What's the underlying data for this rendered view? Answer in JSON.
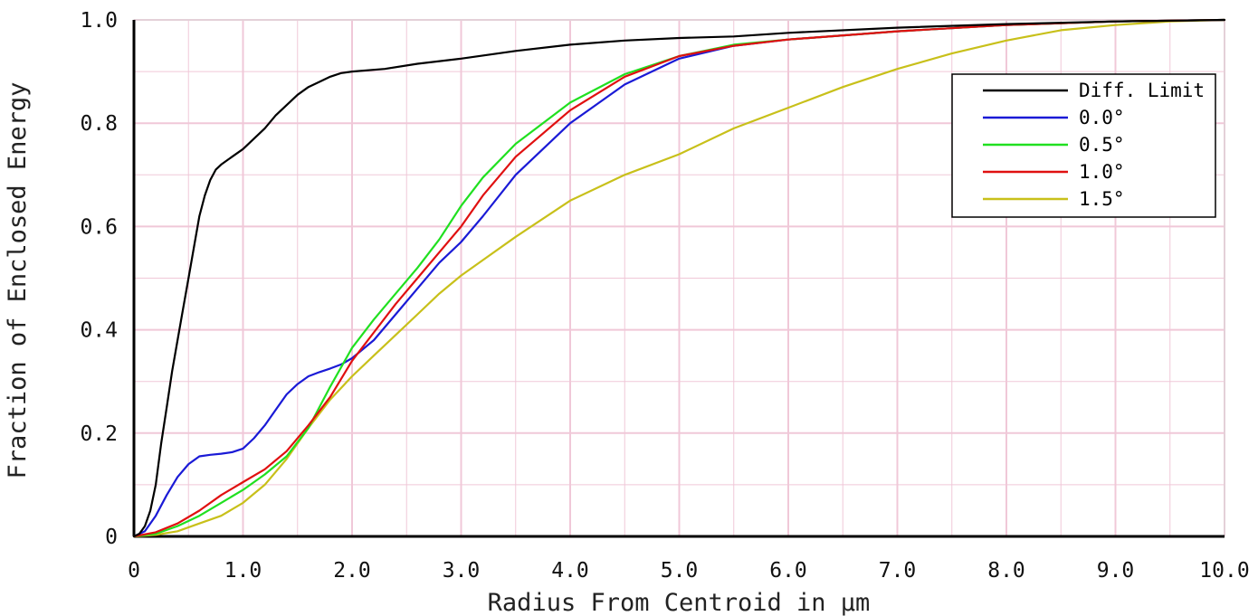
{
  "chart_data": {
    "type": "line",
    "title": "",
    "xlabel": "Radius From Centroid in µm",
    "ylabel": "Fraction of Enclosed Energy",
    "xlim": [
      0,
      10
    ],
    "ylim": [
      0,
      1
    ],
    "x_ticks": [
      {
        "value": 0,
        "label": "0"
      },
      {
        "value": 1,
        "label": "1.0"
      },
      {
        "value": 2,
        "label": "2.0"
      },
      {
        "value": 3,
        "label": "3.0"
      },
      {
        "value": 4,
        "label": "4.0"
      },
      {
        "value": 5,
        "label": "5.0"
      },
      {
        "value": 6,
        "label": "6.0"
      },
      {
        "value": 7,
        "label": "7.0"
      },
      {
        "value": 8,
        "label": "8.0"
      },
      {
        "value": 9,
        "label": "9.0"
      },
      {
        "value": 10,
        "label": "10.0"
      }
    ],
    "y_ticks": [
      {
        "value": 0,
        "label": "0"
      },
      {
        "value": 0.2,
        "label": "0.2"
      },
      {
        "value": 0.4,
        "label": "0.4"
      },
      {
        "value": 0.6,
        "label": "0.6"
      },
      {
        "value": 0.8,
        "label": "0.8"
      },
      {
        "value": 1.0,
        "label": "1.0"
      }
    ],
    "grid": true,
    "grid_color": "#f0c8d8",
    "legend_position": "top-right",
    "series": [
      {
        "name": "Diff. Limit",
        "color": "#000000",
        "points": [
          [
            0,
            0
          ],
          [
            0.05,
            0.005
          ],
          [
            0.1,
            0.02
          ],
          [
            0.15,
            0.05
          ],
          [
            0.2,
            0.1
          ],
          [
            0.25,
            0.18
          ],
          [
            0.3,
            0.25
          ],
          [
            0.35,
            0.32
          ],
          [
            0.4,
            0.38
          ],
          [
            0.45,
            0.44
          ],
          [
            0.5,
            0.5
          ],
          [
            0.55,
            0.56
          ],
          [
            0.6,
            0.62
          ],
          [
            0.65,
            0.66
          ],
          [
            0.7,
            0.69
          ],
          [
            0.75,
            0.71
          ],
          [
            0.8,
            0.72
          ],
          [
            0.9,
            0.735
          ],
          [
            1.0,
            0.75
          ],
          [
            1.1,
            0.77
          ],
          [
            1.2,
            0.79
          ],
          [
            1.3,
            0.815
          ],
          [
            1.4,
            0.835
          ],
          [
            1.5,
            0.855
          ],
          [
            1.6,
            0.87
          ],
          [
            1.7,
            0.88
          ],
          [
            1.8,
            0.89
          ],
          [
            1.9,
            0.897
          ],
          [
            2.0,
            0.9
          ],
          [
            2.3,
            0.905
          ],
          [
            2.6,
            0.915
          ],
          [
            3.0,
            0.925
          ],
          [
            3.5,
            0.94
          ],
          [
            4.0,
            0.952
          ],
          [
            4.5,
            0.96
          ],
          [
            5.0,
            0.965
          ],
          [
            5.5,
            0.968
          ],
          [
            6.0,
            0.975
          ],
          [
            7.0,
            0.985
          ],
          [
            8.0,
            0.992
          ],
          [
            9.0,
            0.997
          ],
          [
            10.0,
            1.0
          ]
        ]
      },
      {
        "name": "0.0°",
        "color": "#1a1ad6",
        "points": [
          [
            0,
            0
          ],
          [
            0.1,
            0.01
          ],
          [
            0.2,
            0.04
          ],
          [
            0.3,
            0.08
          ],
          [
            0.4,
            0.115
          ],
          [
            0.5,
            0.14
          ],
          [
            0.6,
            0.155
          ],
          [
            0.7,
            0.158
          ],
          [
            0.8,
            0.16
          ],
          [
            0.9,
            0.163
          ],
          [
            1.0,
            0.17
          ],
          [
            1.1,
            0.19
          ],
          [
            1.2,
            0.215
          ],
          [
            1.3,
            0.245
          ],
          [
            1.4,
            0.275
          ],
          [
            1.5,
            0.295
          ],
          [
            1.6,
            0.31
          ],
          [
            1.7,
            0.318
          ],
          [
            1.8,
            0.325
          ],
          [
            1.9,
            0.333
          ],
          [
            2.0,
            0.345
          ],
          [
            2.2,
            0.38
          ],
          [
            2.4,
            0.43
          ],
          [
            2.6,
            0.48
          ],
          [
            2.8,
            0.53
          ],
          [
            3.0,
            0.57
          ],
          [
            3.2,
            0.62
          ],
          [
            3.5,
            0.7
          ],
          [
            4.0,
            0.8
          ],
          [
            4.5,
            0.875
          ],
          [
            5.0,
            0.925
          ],
          [
            5.5,
            0.95
          ],
          [
            6.0,
            0.962
          ],
          [
            7.0,
            0.978
          ],
          [
            8.0,
            0.99
          ],
          [
            9.0,
            0.997
          ],
          [
            10.0,
            1.0
          ]
        ]
      },
      {
        "name": "0.5°",
        "color": "#20e020",
        "points": [
          [
            0,
            0
          ],
          [
            0.2,
            0.005
          ],
          [
            0.4,
            0.02
          ],
          [
            0.6,
            0.04
          ],
          [
            0.8,
            0.065
          ],
          [
            1.0,
            0.09
          ],
          [
            1.2,
            0.12
          ],
          [
            1.4,
            0.155
          ],
          [
            1.6,
            0.21
          ],
          [
            1.8,
            0.29
          ],
          [
            2.0,
            0.365
          ],
          [
            2.2,
            0.42
          ],
          [
            2.4,
            0.47
          ],
          [
            2.6,
            0.52
          ],
          [
            2.8,
            0.575
          ],
          [
            3.0,
            0.64
          ],
          [
            3.2,
            0.695
          ],
          [
            3.5,
            0.76
          ],
          [
            4.0,
            0.84
          ],
          [
            4.5,
            0.895
          ],
          [
            5.0,
            0.93
          ],
          [
            5.5,
            0.952
          ],
          [
            6.0,
            0.962
          ],
          [
            7.0,
            0.978
          ],
          [
            8.0,
            0.99
          ],
          [
            9.0,
            0.997
          ],
          [
            10.0,
            1.0
          ]
        ]
      },
      {
        "name": "1.0°",
        "color": "#e01010",
        "points": [
          [
            0,
            0
          ],
          [
            0.2,
            0.008
          ],
          [
            0.4,
            0.025
          ],
          [
            0.6,
            0.05
          ],
          [
            0.8,
            0.08
          ],
          [
            1.0,
            0.105
          ],
          [
            1.2,
            0.13
          ],
          [
            1.4,
            0.165
          ],
          [
            1.6,
            0.215
          ],
          [
            1.8,
            0.27
          ],
          [
            2.0,
            0.34
          ],
          [
            2.2,
            0.395
          ],
          [
            2.4,
            0.45
          ],
          [
            2.6,
            0.5
          ],
          [
            2.8,
            0.55
          ],
          [
            3.0,
            0.6
          ],
          [
            3.2,
            0.66
          ],
          [
            3.5,
            0.735
          ],
          [
            4.0,
            0.825
          ],
          [
            4.5,
            0.89
          ],
          [
            5.0,
            0.93
          ],
          [
            5.5,
            0.95
          ],
          [
            6.0,
            0.962
          ],
          [
            7.0,
            0.978
          ],
          [
            8.0,
            0.99
          ],
          [
            9.0,
            0.997
          ],
          [
            10.0,
            1.0
          ]
        ]
      },
      {
        "name": "1.5°",
        "color": "#c8c01a",
        "points": [
          [
            0,
            0
          ],
          [
            0.2,
            0.003
          ],
          [
            0.4,
            0.01
          ],
          [
            0.6,
            0.025
          ],
          [
            0.8,
            0.04
          ],
          [
            1.0,
            0.065
          ],
          [
            1.2,
            0.1
          ],
          [
            1.4,
            0.15
          ],
          [
            1.6,
            0.21
          ],
          [
            1.8,
            0.265
          ],
          [
            2.0,
            0.31
          ],
          [
            2.2,
            0.35
          ],
          [
            2.4,
            0.39
          ],
          [
            2.6,
            0.43
          ],
          [
            2.8,
            0.47
          ],
          [
            3.0,
            0.505
          ],
          [
            3.2,
            0.535
          ],
          [
            3.5,
            0.58
          ],
          [
            4.0,
            0.65
          ],
          [
            4.5,
            0.7
          ],
          [
            5.0,
            0.74
          ],
          [
            5.5,
            0.79
          ],
          [
            6.0,
            0.83
          ],
          [
            6.5,
            0.87
          ],
          [
            7.0,
            0.905
          ],
          [
            7.5,
            0.935
          ],
          [
            8.0,
            0.96
          ],
          [
            8.5,
            0.98
          ],
          [
            9.0,
            0.99
          ],
          [
            9.5,
            0.997
          ],
          [
            10.0,
            1.0
          ]
        ]
      }
    ]
  }
}
